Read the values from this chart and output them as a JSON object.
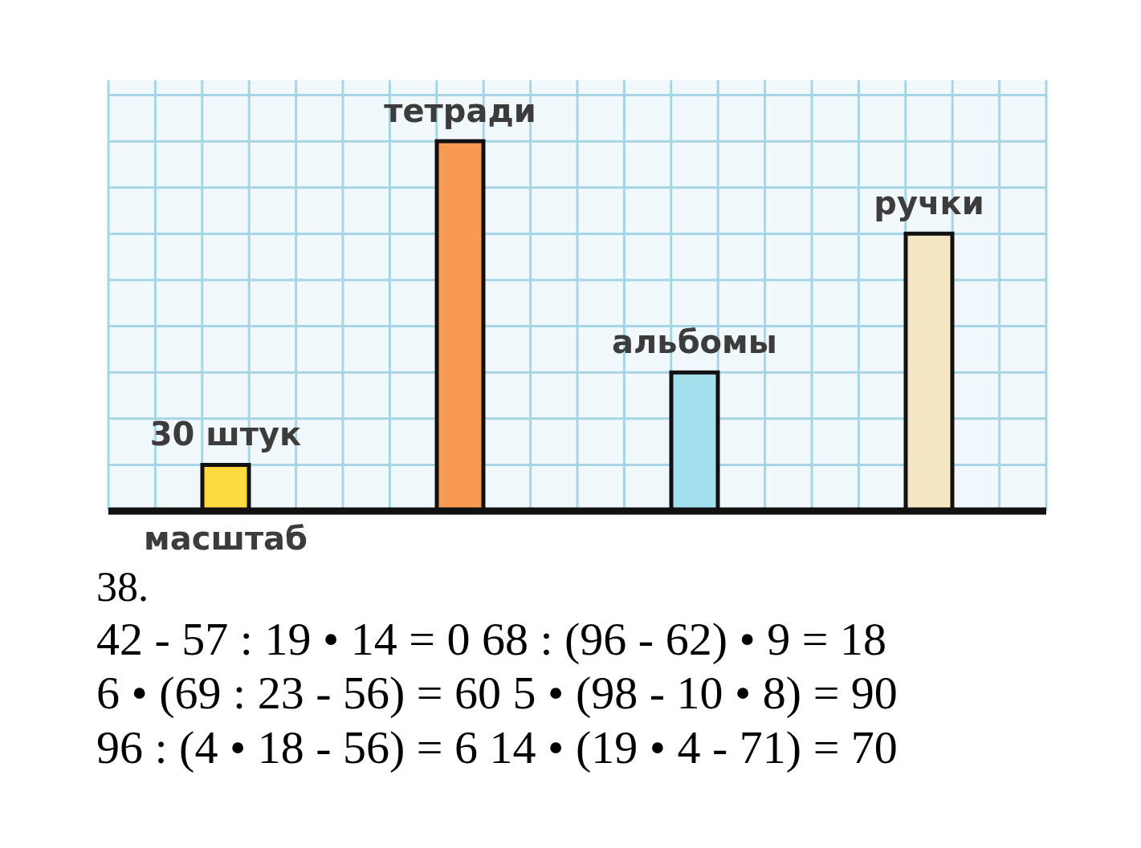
{
  "chart_data": {
    "type": "bar",
    "categories": [
      "масштаб",
      "тетради",
      "альбомы",
      "ручки"
    ],
    "values": [
      30,
      240,
      90,
      180
    ],
    "colors": [
      "#fcd93c",
      "#f99a52",
      "#a3e0ee",
      "#f5e7c3"
    ],
    "value_labels": [
      "30 штук",
      null,
      null,
      null
    ],
    "grid": true,
    "annotations": [
      "38.",
      "42 - 57 : 19 • 14 = 0 68 : (96 - 62) • 9 = 18",
      "6 • (69 : 23 - 56) = 60 5 • (98 - 10 • 8) = 90",
      "96 : (4 • 18 - 56) = 6 14 • (19 • 4 - 71) = 70"
    ]
  }
}
